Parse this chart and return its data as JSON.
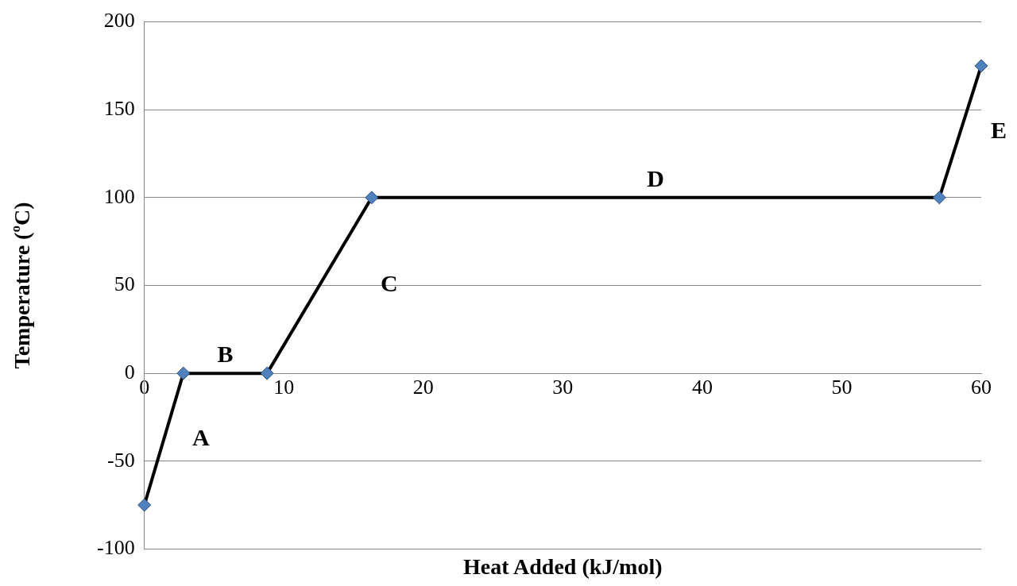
{
  "chart_data": {
    "type": "line",
    "xlabel": "Heat Added (kJ/mol)",
    "ylabel": "Temperature ($^{o}$C)",
    "x": [
      0,
      2.8,
      8.8,
      16.3,
      57,
      60
    ],
    "series": [
      {
        "color": "#000000",
        "values": [
          -75,
          0,
          0,
          100,
          100,
          175
        ]
      }
    ],
    "xlim": [
      0,
      60
    ],
    "xticks": [
      0,
      10,
      20,
      30,
      40,
      50,
      60
    ],
    "ylim": [
      -100,
      200
    ],
    "yticks": [
      -100,
      -50,
      0,
      50,
      100,
      150,
      200
    ],
    "grid": "y",
    "legend": false,
    "marker": "diamond",
    "line_style": "solid",
    "annotations": [
      "A",
      "B",
      "C",
      "D",
      "E"
    ]
  }
}
